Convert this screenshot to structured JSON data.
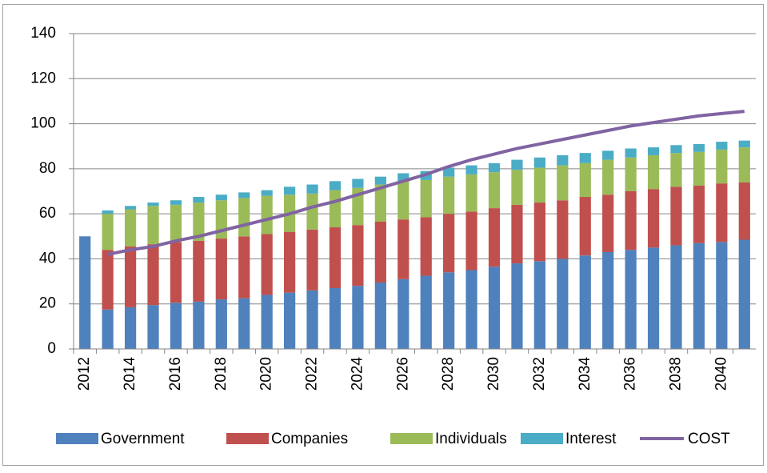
{
  "chart_data": {
    "type": "stacked-bar-line",
    "categories": [
      "2012",
      null,
      "2014",
      null,
      "2016",
      null,
      "2018",
      null,
      "2020",
      null,
      "2022",
      null,
      "2024",
      null,
      "2026",
      null,
      "2028",
      null,
      "2030",
      null,
      "2032",
      null,
      "2034",
      null,
      "2036",
      null,
      "2038",
      null,
      "2040",
      null
    ],
    "series": [
      {
        "name": "Government",
        "color": "#4f81bd",
        "values": [
          50,
          17.5,
          18.5,
          19.5,
          20.5,
          21,
          22,
          22.5,
          24,
          25,
          26,
          27,
          28,
          29.5,
          31,
          32.5,
          34,
          35,
          36.5,
          38,
          39,
          40,
          41.5,
          43,
          44,
          45,
          46,
          47,
          47.5,
          48.5
        ]
      },
      {
        "name": "Companies",
        "color": "#c0504d",
        "values": [
          null,
          26.5,
          27,
          27,
          27,
          27,
          27,
          27.5,
          27,
          27,
          27,
          27,
          27,
          27,
          26.5,
          26,
          26,
          26,
          26,
          26,
          26,
          26,
          26,
          25.5,
          26,
          26,
          26,
          25.5,
          26,
          25.5
        ]
      },
      {
        "name": "Individuals",
        "color": "#9bbb59",
        "values": [
          null,
          16,
          16.5,
          17,
          16.5,
          17,
          17,
          17,
          17,
          16.5,
          16,
          16.5,
          16.5,
          16.5,
          17,
          16.5,
          16.5,
          16.5,
          16,
          15.5,
          15.5,
          15.5,
          15,
          15.5,
          15,
          15,
          15,
          15,
          15,
          15.5
        ]
      },
      {
        "name": "Interest",
        "color": "#4bacc6",
        "values": [
          null,
          1.5,
          1.5,
          1.5,
          2,
          2.5,
          2.5,
          2.5,
          2.5,
          3.5,
          4,
          4,
          4,
          3.5,
          3.5,
          4,
          4,
          4,
          4,
          4.5,
          4.5,
          4.5,
          4.5,
          4,
          4,
          3.5,
          3.5,
          3.5,
          3.5,
          3
        ]
      },
      {
        "name": "COST",
        "color": "#8064a2",
        "kind": "line",
        "values": [
          null,
          42,
          44,
          45.5,
          48,
          50,
          52.5,
          55,
          57.5,
          60,
          63,
          65.5,
          68.5,
          71.5,
          74.5,
          77.5,
          81,
          84,
          86.5,
          89,
          91,
          93,
          95,
          97,
          99,
          100.5,
          102,
          103.5,
          104.5,
          105.5
        ]
      }
    ],
    "ylim": [
      0,
      140
    ],
    "yticks": [
      0,
      20,
      40,
      60,
      80,
      100,
      120,
      140
    ],
    "grid": true,
    "legend": "bottom"
  }
}
